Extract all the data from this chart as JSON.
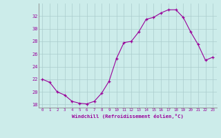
{
  "x": [
    0,
    1,
    2,
    3,
    4,
    5,
    6,
    7,
    8,
    9,
    10,
    11,
    12,
    13,
    14,
    15,
    16,
    17,
    18,
    19,
    20,
    21,
    22,
    23
  ],
  "y": [
    22.0,
    21.5,
    20.0,
    19.5,
    18.5,
    18.2,
    18.1,
    18.5,
    19.8,
    21.7,
    25.3,
    27.8,
    28.0,
    29.5,
    31.5,
    31.8,
    32.5,
    33.0,
    33.0,
    31.8,
    29.5,
    27.5,
    25.0,
    25.5
  ],
  "line_color": "#990099",
  "marker": "+",
  "bg_color": "#ccecea",
  "grid_color": "#aacccc",
  "xlabel": "Windchill (Refroidissement éolien,°C)",
  "xlabel_color": "#990099",
  "tick_color": "#990099",
  "ylim": [
    17.5,
    34.0
  ],
  "yticks": [
    18,
    20,
    22,
    24,
    26,
    28,
    30,
    32
  ],
  "xticks": [
    0,
    1,
    2,
    3,
    4,
    5,
    6,
    7,
    8,
    9,
    10,
    11,
    12,
    13,
    14,
    15,
    16,
    17,
    18,
    19,
    20,
    21,
    22,
    23
  ],
  "xlim": [
    -0.5,
    23.5
  ]
}
